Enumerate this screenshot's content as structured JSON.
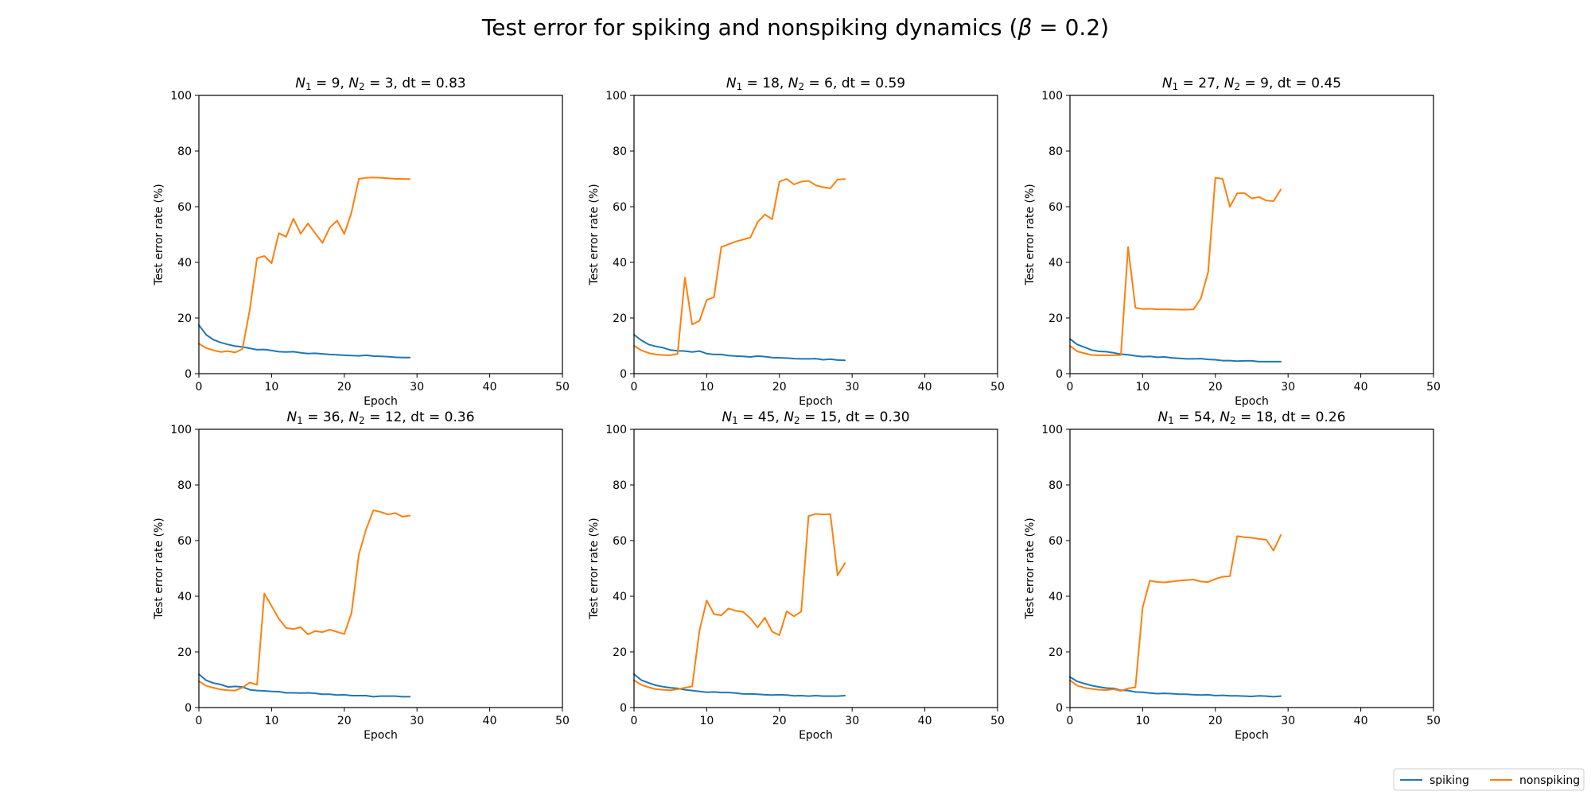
{
  "figure": {
    "title_prefix": "Test error for spiking and nonspiking dynamics (",
    "title_symbol": "β",
    "title_suffix": " = 0.2)",
    "legend": [
      {
        "label": "spiking",
        "color": "#1f77b4"
      },
      {
        "label": "nonspiking",
        "color": "#ff7f0e"
      }
    ]
  },
  "chart_data": [
    {
      "type": "line",
      "title_parts": [
        {
          "v": "N",
          "sub": "1"
        },
        " = 9, ",
        {
          "v": "N",
          "sub": "2"
        },
        " = 3, dt = 0.83"
      ],
      "xlabel": "Epoch",
      "ylabel": "Test error rate (%)",
      "xlim": [
        0,
        50
      ],
      "ylim": [
        0,
        100
      ],
      "xticks": [
        0,
        10,
        20,
        30,
        40,
        50
      ],
      "yticks": [
        0,
        20,
        40,
        60,
        80,
        100
      ],
      "grid": false,
      "series": [
        {
          "name": "spiking",
          "color": "#1f77b4",
          "x": [
            0,
            1,
            2,
            3,
            4,
            5,
            6,
            7,
            8,
            9,
            10,
            11,
            12,
            13,
            14,
            15,
            16,
            17,
            18,
            19,
            20,
            21,
            22,
            23,
            24,
            25,
            26,
            27,
            28,
            29
          ],
          "y": [
            17.5,
            14,
            12.2,
            11.2,
            10.5,
            9.9,
            9.6,
            9.1,
            8.6,
            8.7,
            8.3,
            7.9,
            7.8,
            7.9,
            7.5,
            7.2,
            7.3,
            7.1,
            6.9,
            6.8,
            6.6,
            6.5,
            6.4,
            6.6,
            6.3,
            6.2,
            6.1,
            5.9,
            5.8,
            5.8
          ]
        },
        {
          "name": "nonspiking",
          "color": "#ff7f0e",
          "x": [
            0,
            1,
            2,
            3,
            4,
            5,
            6,
            7,
            8,
            9,
            10,
            11,
            12,
            13,
            14,
            15,
            16,
            17,
            18,
            19,
            20,
            21,
            22,
            23,
            24,
            25,
            26,
            27,
            28,
            29
          ],
          "y": [
            10.8,
            9.2,
            8.4,
            7.8,
            8.1,
            7.6,
            8.9,
            23,
            41.5,
            42.3,
            39.7,
            50.5,
            49.2,
            55.7,
            50.3,
            54,
            50.5,
            47,
            52.5,
            55,
            50.2,
            58,
            70,
            70.4,
            70.5,
            70.4,
            70.2,
            70,
            70,
            69.9
          ]
        }
      ]
    },
    {
      "type": "line",
      "title_parts": [
        {
          "v": "N",
          "sub": "1"
        },
        " = 18, ",
        {
          "v": "N",
          "sub": "2"
        },
        " = 6, dt = 0.59"
      ],
      "xlabel": "Epoch",
      "ylabel": "Test error rate (%)",
      "xlim": [
        0,
        50
      ],
      "ylim": [
        0,
        100
      ],
      "xticks": [
        0,
        10,
        20,
        30,
        40,
        50
      ],
      "yticks": [
        0,
        20,
        40,
        60,
        80,
        100
      ],
      "grid": false,
      "series": [
        {
          "name": "spiking",
          "color": "#1f77b4",
          "x": [
            0,
            1,
            2,
            3,
            4,
            5,
            6,
            7,
            8,
            9,
            10,
            11,
            12,
            13,
            14,
            15,
            16,
            17,
            18,
            19,
            20,
            21,
            22,
            23,
            24,
            25,
            26,
            27,
            28,
            29
          ],
          "y": [
            14,
            12,
            10.5,
            9.8,
            9.3,
            8.5,
            8.2,
            8.1,
            7.8,
            8.1,
            7.2,
            6.9,
            6.9,
            6.5,
            6.3,
            6.2,
            6,
            6.3,
            6.1,
            5.8,
            5.7,
            5.6,
            5.4,
            5.3,
            5.3,
            5.4,
            5,
            5.2,
            4.9,
            4.8
          ]
        },
        {
          "name": "nonspiking",
          "color": "#ff7f0e",
          "x": [
            0,
            1,
            2,
            3,
            4,
            5,
            6,
            7,
            8,
            9,
            10,
            11,
            12,
            13,
            14,
            15,
            16,
            17,
            18,
            19,
            20,
            21,
            22,
            23,
            24,
            25,
            26,
            27,
            28,
            29
          ],
          "y": [
            10,
            8.4,
            7.4,
            6.9,
            6.7,
            6.6,
            7.1,
            34.5,
            17.7,
            19,
            26.5,
            27.5,
            45.5,
            46.5,
            47.5,
            48.2,
            48.9,
            54.5,
            57.2,
            55.5,
            69,
            70,
            68,
            69,
            69.3,
            67.7,
            67,
            66.6,
            69.8,
            69.9
          ]
        }
      ]
    },
    {
      "type": "line",
      "title_parts": [
        {
          "v": "N",
          "sub": "1"
        },
        " = 27, ",
        {
          "v": "N",
          "sub": "2"
        },
        " = 9, dt = 0.45"
      ],
      "xlabel": "Epoch",
      "ylabel": "Test error rate (%)",
      "xlim": [
        0,
        50
      ],
      "ylim": [
        0,
        100
      ],
      "xticks": [
        0,
        10,
        20,
        30,
        40,
        50
      ],
      "yticks": [
        0,
        20,
        40,
        60,
        80,
        100
      ],
      "grid": false,
      "series": [
        {
          "name": "spiking",
          "color": "#1f77b4",
          "x": [
            0,
            1,
            2,
            3,
            4,
            5,
            6,
            7,
            8,
            9,
            10,
            11,
            12,
            13,
            14,
            15,
            16,
            17,
            18,
            19,
            20,
            21,
            22,
            23,
            24,
            25,
            26,
            27,
            28,
            29
          ],
          "y": [
            12.5,
            10.5,
            9.5,
            8.5,
            8,
            7.9,
            7.5,
            7,
            6.8,
            6.4,
            6.1,
            6.2,
            5.9,
            6,
            5.7,
            5.5,
            5.3,
            5.3,
            5.4,
            5.1,
            5,
            4.7,
            4.7,
            4.5,
            4.6,
            4.6,
            4.3,
            4.3,
            4.3,
            4.3
          ]
        },
        {
          "name": "nonspiking",
          "color": "#ff7f0e",
          "x": [
            0,
            1,
            2,
            3,
            4,
            5,
            6,
            7,
            8,
            9,
            10,
            11,
            12,
            13,
            14,
            15,
            16,
            17,
            18,
            19,
            20,
            21,
            22,
            23,
            24,
            25,
            26,
            27,
            28,
            29
          ],
          "y": [
            10,
            8,
            7.3,
            6.7,
            6.6,
            6.6,
            6.6,
            6.7,
            45.5,
            23.7,
            23.2,
            23.3,
            23.1,
            23.1,
            23.1,
            23,
            23,
            23.1,
            27,
            36.5,
            70.4,
            70,
            60,
            64.8,
            64.9,
            63,
            63.5,
            62.2,
            62,
            66.2
          ]
        }
      ]
    },
    {
      "type": "line",
      "title_parts": [
        {
          "v": "N",
          "sub": "1"
        },
        " = 36, ",
        {
          "v": "N",
          "sub": "2"
        },
        " = 12, dt = 0.36"
      ],
      "xlabel": "Epoch",
      "ylabel": "Test error rate (%)",
      "xlim": [
        0,
        50
      ],
      "ylim": [
        0,
        100
      ],
      "xticks": [
        0,
        10,
        20,
        30,
        40,
        50
      ],
      "yticks": [
        0,
        20,
        40,
        60,
        80,
        100
      ],
      "grid": false,
      "series": [
        {
          "name": "spiking",
          "color": "#1f77b4",
          "x": [
            0,
            1,
            2,
            3,
            4,
            5,
            6,
            7,
            8,
            9,
            10,
            11,
            12,
            13,
            14,
            15,
            16,
            17,
            18,
            19,
            20,
            21,
            22,
            23,
            24,
            25,
            26,
            27,
            28,
            29
          ],
          "y": [
            12,
            9.8,
            8.8,
            8.3,
            7.4,
            7.6,
            7.4,
            6.4,
            6.1,
            6,
            5.8,
            5.7,
            5.3,
            5.3,
            5.2,
            5.3,
            5.1,
            4.8,
            4.8,
            4.5,
            4.6,
            4.3,
            4.3,
            4.3,
            3.9,
            4.1,
            4.1,
            4.1,
            3.9,
            3.9
          ]
        },
        {
          "name": "nonspiking",
          "color": "#ff7f0e",
          "x": [
            0,
            1,
            2,
            3,
            4,
            5,
            6,
            7,
            8,
            9,
            10,
            11,
            12,
            13,
            14,
            15,
            16,
            17,
            18,
            19,
            20,
            21,
            22,
            23,
            24,
            25,
            26,
            27,
            28,
            29
          ],
          "y": [
            9.5,
            7.8,
            7.1,
            6.5,
            6.2,
            6.1,
            7.2,
            9,
            8.2,
            41,
            36.5,
            31.9,
            28.6,
            28.2,
            28.9,
            26.3,
            27.5,
            27.1,
            28,
            27.2,
            26.4,
            34,
            55,
            64,
            70.9,
            70.3,
            69.4,
            69.9,
            68.6,
            69
          ]
        }
      ]
    },
    {
      "type": "line",
      "title_parts": [
        {
          "v": "N",
          "sub": "1"
        },
        " = 45, ",
        {
          "v": "N",
          "sub": "2"
        },
        " = 15, dt = 0.30"
      ],
      "xlabel": "Epoch",
      "ylabel": "Test error rate (%)",
      "xlim": [
        0,
        50
      ],
      "ylim": [
        0,
        100
      ],
      "xticks": [
        0,
        10,
        20,
        30,
        40,
        50
      ],
      "yticks": [
        0,
        20,
        40,
        60,
        80,
        100
      ],
      "grid": false,
      "series": [
        {
          "name": "spiking",
          "color": "#1f77b4",
          "x": [
            0,
            1,
            2,
            3,
            4,
            5,
            6,
            7,
            8,
            9,
            10,
            11,
            12,
            13,
            14,
            15,
            16,
            17,
            18,
            19,
            20,
            21,
            22,
            23,
            24,
            25,
            26,
            27,
            28,
            29
          ],
          "y": [
            12,
            9.9,
            8.9,
            8,
            7.5,
            7.1,
            6.9,
            6.4,
            6.1,
            5.8,
            5.5,
            5.6,
            5.4,
            5.4,
            5.2,
            4.9,
            4.9,
            4.8,
            4.6,
            4.5,
            4.6,
            4.5,
            4.2,
            4.3,
            4.1,
            4.3,
            4.1,
            4.1,
            4.1,
            4.3
          ]
        },
        {
          "name": "nonspiking",
          "color": "#ff7f0e",
          "x": [
            0,
            1,
            2,
            3,
            4,
            5,
            6,
            7,
            8,
            9,
            10,
            11,
            12,
            13,
            14,
            15,
            16,
            17,
            18,
            19,
            20,
            21,
            22,
            23,
            24,
            25,
            26,
            27,
            28,
            29
          ],
          "y": [
            9.8,
            8.2,
            7.3,
            6.6,
            6.4,
            6.2,
            6.6,
            7.1,
            7.6,
            27.7,
            38.5,
            33.6,
            33.1,
            35.6,
            34.8,
            34.4,
            32.1,
            28.8,
            32.3,
            27.3,
            26,
            34.6,
            32.8,
            34.5,
            68.8,
            69.6,
            69.4,
            69.5,
            47.5,
            51.9
          ]
        }
      ]
    },
    {
      "type": "line",
      "title_parts": [
        {
          "v": "N",
          "sub": "1"
        },
        " = 54, ",
        {
          "v": "N",
          "sub": "2"
        },
        " = 18, dt = 0.26"
      ],
      "xlabel": "Epoch",
      "ylabel": "Test error rate (%)",
      "xlim": [
        0,
        50
      ],
      "ylim": [
        0,
        100
      ],
      "xticks": [
        0,
        10,
        20,
        30,
        40,
        50
      ],
      "yticks": [
        0,
        20,
        40,
        60,
        80,
        100
      ],
      "grid": false,
      "series": [
        {
          "name": "spiking",
          "color": "#1f77b4",
          "x": [
            0,
            1,
            2,
            3,
            4,
            5,
            6,
            7,
            8,
            9,
            10,
            11,
            12,
            13,
            14,
            15,
            16,
            17,
            18,
            19,
            20,
            21,
            22,
            23,
            24,
            25,
            26,
            27,
            28,
            29
          ],
          "y": [
            11,
            9.4,
            8.6,
            7.9,
            7.4,
            7,
            6.9,
            6.2,
            6.1,
            5.6,
            5.5,
            5.2,
            5,
            5.1,
            5,
            4.8,
            4.8,
            4.6,
            4.5,
            4.6,
            4.3,
            4.4,
            4.2,
            4.2,
            4.1,
            4,
            4.2,
            4.1,
            3.9,
            4.1
          ]
        },
        {
          "name": "nonspiking",
          "color": "#ff7f0e",
          "x": [
            0,
            1,
            2,
            3,
            4,
            5,
            6,
            7,
            8,
            9,
            10,
            11,
            12,
            13,
            14,
            15,
            16,
            17,
            18,
            19,
            20,
            21,
            22,
            23,
            24,
            25,
            26,
            27,
            28,
            29
          ],
          "y": [
            9.8,
            7.9,
            7.1,
            6.7,
            6.4,
            6.3,
            6.6,
            6,
            6.9,
            7.3,
            36,
            45.6,
            45.1,
            45,
            45.3,
            45.6,
            45.8,
            46,
            45.3,
            45.1,
            46.2,
            47,
            47.2,
            61.6,
            61.2,
            61,
            60.6,
            60.3,
            56.4,
            62
          ]
        }
      ]
    }
  ]
}
